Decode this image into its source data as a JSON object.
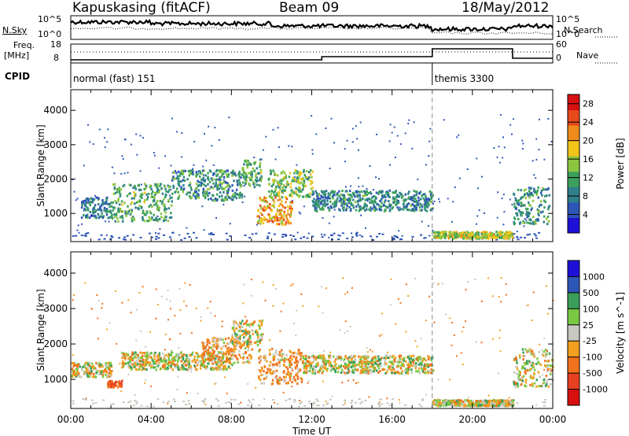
{
  "header": {
    "station": "Kapuskasing (fitACF)",
    "beam": "Beam 09",
    "date": "18/May/2012"
  },
  "summary": {
    "nsky_label": "N.Sky",
    "nsearch_label": "N.Search",
    "freq_label": "Freq.",
    "freq_unit": "[MHz]",
    "nave_label": "Nave",
    "cpid_label": "CPID",
    "noise_ticks": [
      "10^5",
      "10^0"
    ],
    "freq_ticks": [
      "18",
      "8"
    ],
    "nave_ticks": [
      "60",
      "0"
    ]
  },
  "cpid_segments": [
    {
      "label": "normal (fast) 151",
      "start_hour": 0,
      "end_hour": 18
    },
    {
      "label": "themis 3300",
      "start_hour": 18,
      "end_hour": 24
    }
  ],
  "chart_data": [
    {
      "type": "heatmap",
      "name": "power-panel",
      "xlabel": "",
      "ylabel": "Slant Range [km]",
      "xlim": [
        0,
        24
      ],
      "ylim": [
        180,
        4600
      ],
      "yticks": [
        1000,
        2000,
        3000,
        4000
      ],
      "colorbar": {
        "label": "Power [dB]",
        "ticks": [
          4,
          8,
          12,
          16,
          20,
          24,
          28
        ],
        "range": [
          0,
          30
        ],
        "colors": [
          "#1f10d8",
          "#2e55b8",
          "#2f7f8c",
          "#3aa05c",
          "#8cc63f",
          "#f2c418",
          "#f08a1c",
          "#e84a1c",
          "#d81010"
        ]
      },
      "regions": [
        {
          "x": [
            0.5,
            2.0
          ],
          "y": [
            900,
            1500
          ],
          "level": 8
        },
        {
          "x": [
            2.0,
            5.0
          ],
          "y": [
            800,
            1900
          ],
          "level": 12
        },
        {
          "x": [
            5.0,
            8.5
          ],
          "y": [
            1400,
            2300
          ],
          "level": 10
        },
        {
          "x": [
            8.5,
            9.5
          ],
          "y": [
            1800,
            2600
          ],
          "level": 12
        },
        {
          "x": [
            9.2,
            11.0
          ],
          "y": [
            700,
            1500
          ],
          "level": 20
        },
        {
          "x": [
            9.8,
            12.0
          ],
          "y": [
            1500,
            2300
          ],
          "level": 14
        },
        {
          "x": [
            12.0,
            18.0
          ],
          "y": [
            1100,
            1700
          ],
          "level": 9
        },
        {
          "x": [
            18.0,
            22.0
          ],
          "y": [
            300,
            500
          ],
          "level": 16
        },
        {
          "x": [
            22.0,
            23.8
          ],
          "y": [
            700,
            1800
          ],
          "level": 10
        }
      ]
    },
    {
      "type": "heatmap",
      "name": "velocity-panel",
      "xlabel": "Time UT",
      "ylabel": "Slant Range [km]",
      "xlim": [
        0,
        24
      ],
      "ylim": [
        180,
        4600
      ],
      "yticks": [
        1000,
        2000,
        3000,
        4000
      ],
      "xticks": [
        "00:00",
        "04:00",
        "08:00",
        "12:00",
        "16:00",
        "20:00",
        "00:00"
      ],
      "colorbar": {
        "label": "Velocity [m s^-1]",
        "ticks": [
          1000,
          500,
          100,
          25,
          -25,
          -100,
          -500,
          -1000
        ],
        "colors": [
          "#1f10d8",
          "#2e55b8",
          "#3a9e5a",
          "#7ac943",
          "#c8c8c0",
          "#f2a020",
          "#f0721c",
          "#e84020",
          "#d81010"
        ]
      },
      "regions": [
        {
          "x": [
            0.0,
            2.0
          ],
          "y": [
            1100,
            1500
          ],
          "value": 0
        },
        {
          "x": [
            1.8,
            2.5
          ],
          "y": [
            800,
            1000
          ],
          "value": -500
        },
        {
          "x": [
            2.5,
            8.0
          ],
          "y": [
            1300,
            1800
          ],
          "value": 0
        },
        {
          "x": [
            6.5,
            9.0
          ],
          "y": [
            1500,
            2200
          ],
          "value": -100
        },
        {
          "x": [
            8.0,
            9.5
          ],
          "y": [
            2000,
            2700
          ],
          "value": 0
        },
        {
          "x": [
            9.3,
            11.5
          ],
          "y": [
            900,
            1900
          ],
          "value": -100
        },
        {
          "x": [
            11.5,
            18.0
          ],
          "y": [
            1200,
            1700
          ],
          "value": 0
        },
        {
          "x": [
            18.0,
            22.0
          ],
          "y": [
            280,
            450
          ],
          "value": 0
        },
        {
          "x": [
            22.0,
            24.0
          ],
          "y": [
            800,
            1900
          ],
          "value": 0
        }
      ]
    }
  ]
}
